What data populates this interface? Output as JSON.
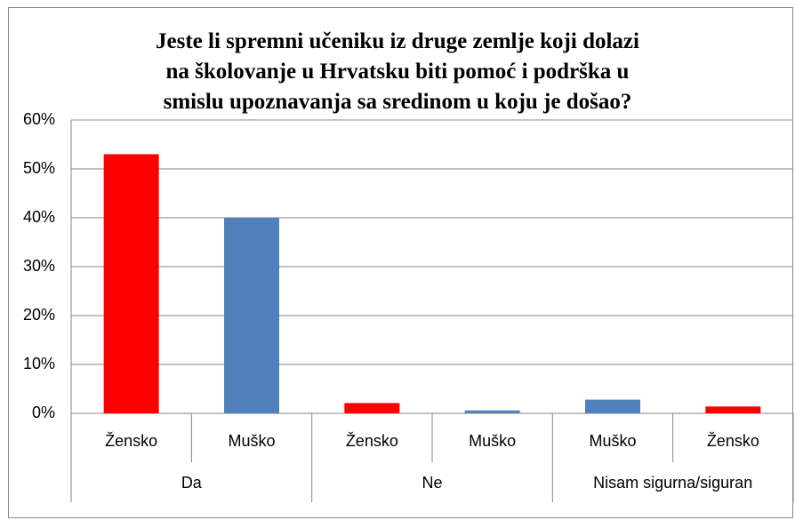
{
  "chart_data": {
    "type": "bar",
    "title": "Jeste li spremni učeniku iz druge zemlje koji dolazi\nna školovanje u Hrvatsku biti pomoć i podrška u\nsmislu upoznavanja sa sredinom u koju je došao?",
    "groups": [
      {
        "name": "Da",
        "categories": [
          "Žensko",
          "Muško"
        ],
        "values": [
          53,
          40
        ],
        "colors": [
          "#ff0000",
          "#4f81bd"
        ]
      },
      {
        "name": "Ne",
        "categories": [
          "Žensko",
          "Muško"
        ],
        "values": [
          2.1,
          0.6
        ],
        "colors": [
          "#ff0000",
          "#4f81bd"
        ]
      },
      {
        "name": "Nisam sigurna/siguran",
        "categories": [
          "Muško",
          "Žensko"
        ],
        "values": [
          2.8,
          1.4
        ],
        "colors": [
          "#4f81bd",
          "#ff0000"
        ]
      }
    ],
    "ylim": [
      0,
      60
    ],
    "yticks": [
      {
        "value": 0,
        "label": "0%"
      },
      {
        "value": 10,
        "label": "10%"
      },
      {
        "value": 20,
        "label": "20%"
      },
      {
        "value": 30,
        "label": "30%"
      },
      {
        "value": 40,
        "label": "40%"
      },
      {
        "value": 50,
        "label": "50%"
      },
      {
        "value": 60,
        "label": "60%"
      }
    ],
    "grid": true
  }
}
